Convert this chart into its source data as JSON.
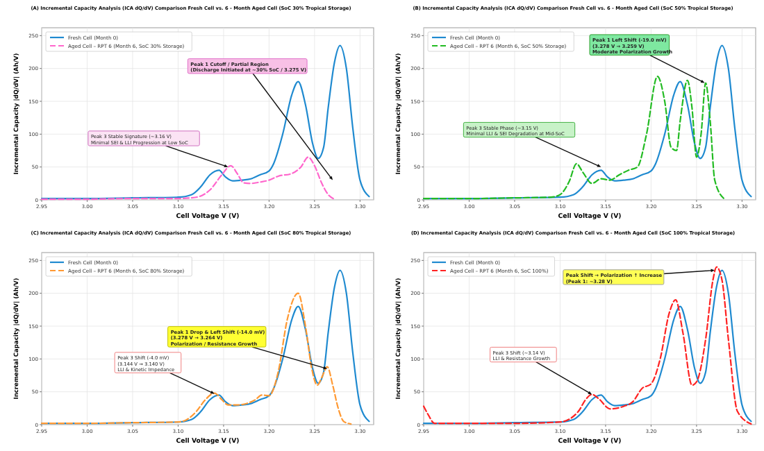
{
  "chart_data": [
    {
      "type": "line",
      "title": "(A)      Incremental Capacity Analysis (ICA dQ/dV) Comparison Fresh Cell vs. 6 - Month Aged Cell (SoC 30% Tropical Storage)",
      "xlabel": "Cell Voltage V (V)",
      "ylabel": "Incremental Capacity |dQ/dV| (Ah/V)",
      "xlim": [
        2.95,
        3.315
      ],
      "ylim": [
        0,
        262
      ],
      "xticks": [
        2.95,
        {
          "value": 3,
          "label": "3.00"
        },
        3.05,
        {
          "value": 3.1,
          "label": "3.10"
        },
        3.15,
        {
          "value": 3.2,
          "label": "3.20"
        },
        3.25,
        {
          "value": 3.3,
          "label": "3.30"
        }
      ],
      "yticks": [
        0,
        50,
        100,
        150,
        200,
        250
      ],
      "grid": true,
      "legend": "top left",
      "marker": "none",
      "series": [
        {
          "name": "Fresh Cell (Month 0)",
          "color": "#1f8ad0",
          "line_style": "solid",
          "x": [
            2.95,
            3.0,
            3.05,
            3.1,
            3.115,
            3.125,
            3.135,
            3.145,
            3.152,
            3.16,
            3.17,
            3.18,
            3.19,
            3.2,
            3.205,
            3.215,
            3.225,
            3.232,
            3.24,
            3.248,
            3.254,
            3.26,
            3.265,
            3.272,
            3.278,
            3.285,
            3.292,
            3.3,
            3.31
          ],
          "values": [
            2,
            2,
            3,
            4,
            8,
            20,
            38,
            45,
            35,
            29,
            30,
            32,
            38,
            44,
            55,
            100,
            160,
            180,
            145,
            85,
            63,
            80,
            140,
            210,
            235,
            200,
            110,
            30,
            5
          ]
        },
        {
          "name": "Aged Cell – RPT 6 (Month 6, SoC 30% Storage)",
          "color": "#ff66cc",
          "line_style": "dashed",
          "x": [
            2.95,
            3.0,
            3.05,
            3.1,
            3.12,
            3.135,
            3.148,
            3.158,
            3.165,
            3.172,
            3.18,
            3.19,
            3.2,
            3.21,
            3.225,
            3.235,
            3.243,
            3.25,
            3.258,
            3.265,
            3.272
          ],
          "values": [
            1,
            1,
            2,
            2,
            4,
            15,
            38,
            52,
            40,
            26,
            25,
            27,
            30,
            36,
            40,
            50,
            65,
            52,
            25,
            8,
            1
          ]
        }
      ],
      "annotations": [
        {
          "text": "Peak 3 Stable Signature (~3.16 V)\nMinimal SEI & LLI Progression at Low SoC",
          "x": 3.155,
          "y": 50
        },
        {
          "text": "Peak 1 Cutoff / Partial Region\n(Discharge Initiated at ~30% SoC / 3.275 V)",
          "x": 3.27,
          "y": 30
        }
      ]
    },
    {
      "type": "line",
      "title": "(B)      Incremental Capacity Analysis (ICA dQ/dV) Comparison Fresh Cell vs. 6 - Month Aged Cell (SoC 50% Tropical Storage)",
      "xlabel": "Cell Voltage V (V)",
      "ylabel": "Incremental Capacity |dQ/dV| (Ah/V)",
      "xlim": [
        2.95,
        3.315
      ],
      "ylim": [
        0,
        262
      ],
      "xticks": [
        2.95,
        {
          "value": 3,
          "label": "3.00"
        },
        3.05,
        {
          "value": 3.1,
          "label": "3.10"
        },
        3.15,
        {
          "value": 3.2,
          "label": "3.20"
        },
        3.25,
        {
          "value": 3.3,
          "label": "3.30"
        }
      ],
      "yticks": [
        0,
        50,
        100,
        150,
        200,
        250
      ],
      "grid": true,
      "legend": "top left",
      "marker": "none",
      "series": [
        {
          "name": "Fresh Cell (Month 0)",
          "color": "#1f8ad0",
          "line_style": "solid",
          "x": [
            2.95,
            3.0,
            3.05,
            3.1,
            3.115,
            3.125,
            3.135,
            3.145,
            3.152,
            3.16,
            3.17,
            3.18,
            3.19,
            3.2,
            3.205,
            3.215,
            3.225,
            3.232,
            3.24,
            3.248,
            3.254,
            3.26,
            3.265,
            3.272,
            3.278,
            3.285,
            3.292,
            3.3,
            3.31
          ],
          "values": [
            2,
            2,
            3,
            4,
            8,
            20,
            38,
            45,
            35,
            29,
            30,
            32,
            38,
            44,
            55,
            100,
            160,
            180,
            145,
            85,
            63,
            80,
            140,
            210,
            235,
            200,
            110,
            30,
            5
          ]
        },
        {
          "name": "Aged Cell – RPT 6 (Month 6, SoC 50% Storage)",
          "color": "#22bb22",
          "line_style": "dashed",
          "x": [
            2.95,
            3.0,
            3.05,
            3.09,
            3.1,
            3.11,
            3.118,
            3.125,
            3.135,
            3.145,
            3.155,
            3.165,
            3.175,
            3.185,
            3.195,
            3.207,
            3.215,
            3.222,
            3.228,
            3.232,
            3.24,
            3.245,
            3.25,
            3.255,
            3.26,
            3.265,
            3.27,
            3.28
          ],
          "values": [
            2,
            2,
            3,
            4,
            8,
            28,
            55,
            42,
            25,
            32,
            30,
            38,
            45,
            50,
            100,
            188,
            150,
            80,
            75,
            120,
            182,
            140,
            65,
            100,
            178,
            120,
            30,
            2
          ]
        }
      ],
      "annotations": [
        {
          "text": "Peak 3 Stable Phase (~3.15 V)\nMinimal LLI & SEI Degradation at Mid-SoC",
          "x": 3.145,
          "y": 50
        },
        {
          "text": "Peak 1 Left Shift (-19.0 mV)\n(3.278 V → 3.259 V)\nModerate Polarization Growth",
          "x": 3.259,
          "y": 178
        }
      ]
    },
    {
      "type": "line",
      "title": "(C)      Incremental Capacity Analysis (ICA dQ/dV) Comparison Fresh Cell vs. 6 - Month Aged Cell (SoC 80% Tropical Storage)",
      "xlabel": "Cell Voltage V (V)",
      "ylabel": "Incremental Capacity |dQ/dV| (Ah/V)",
      "xlim": [
        2.95,
        3.315
      ],
      "ylim": [
        0,
        262
      ],
      "xticks": [
        2.95,
        {
          "value": 3,
          "label": "3.00"
        },
        3.05,
        {
          "value": 3.1,
          "label": "3.10"
        },
        3.15,
        {
          "value": 3.2,
          "label": "3.20"
        },
        3.25,
        {
          "value": 3.3,
          "label": "3.30"
        }
      ],
      "yticks": [
        0,
        50,
        100,
        150,
        200,
        250
      ],
      "grid": true,
      "legend": "top left",
      "marker": "none",
      "series": [
        {
          "name": "Fresh Cell (Month 0)",
          "color": "#1f8ad0",
          "line_style": "solid",
          "x": [
            2.95,
            3.0,
            3.05,
            3.1,
            3.115,
            3.125,
            3.135,
            3.145,
            3.152,
            3.16,
            3.17,
            3.18,
            3.19,
            3.2,
            3.205,
            3.215,
            3.225,
            3.232,
            3.24,
            3.248,
            3.254,
            3.26,
            3.265,
            3.272,
            3.278,
            3.285,
            3.292,
            3.3,
            3.31
          ],
          "values": [
            2,
            2,
            3,
            4,
            8,
            20,
            38,
            45,
            35,
            29,
            30,
            32,
            38,
            44,
            55,
            100,
            160,
            180,
            145,
            85,
            63,
            80,
            140,
            210,
            235,
            200,
            110,
            30,
            5
          ]
        },
        {
          "name": "Aged Cell – RPT 6 (Month 6, SoC 80% Storage)",
          "color": "#ff9933",
          "line_style": "dashed",
          "x": [
            2.95,
            3.0,
            3.05,
            3.1,
            3.11,
            3.12,
            3.13,
            3.14,
            3.148,
            3.155,
            3.165,
            3.175,
            3.185,
            3.192,
            3.2,
            3.21,
            3.22,
            3.232,
            3.24,
            3.247,
            3.253,
            3.258,
            3.264,
            3.27,
            3.276,
            3.282,
            3.29
          ],
          "values": [
            2,
            2,
            3,
            4,
            8,
            20,
            38,
            48,
            38,
            30,
            30,
            32,
            38,
            45,
            44,
            80,
            160,
            200,
            150,
            85,
            60,
            72,
            88,
            60,
            25,
            5,
            1
          ]
        }
      ],
      "annotations": [
        {
          "text": "Peak 3 Shift (-4.0 mV)\n(3.144 V → 3.140 V)\nLLI & Kinetic Impedance",
          "x": 3.14,
          "y": 47
        },
        {
          "text": "Peak 1 Drop & Left Shift (-14.0 mV)\n(3.278 V → 3.264 V)\nPolarization / Resistance Growth",
          "x": 3.264,
          "y": 85
        }
      ]
    },
    {
      "type": "line",
      "title": "(D)      Incremental Capacity Analysis (ICA dQ/dV) Comparison Fresh Cell vs. 6 - Month Aged Cell (SoC 100% Tropical Storage)",
      "xlabel": "Cell Voltage V (V)",
      "ylabel": "Incremental Capacity |dQ/dV| (Ah/V)",
      "xlim": [
        2.95,
        3.315
      ],
      "ylim": [
        0,
        262
      ],
      "xticks": [
        2.95,
        {
          "value": 3,
          "label": "3.00"
        },
        3.05,
        {
          "value": 3.1,
          "label": "3.10"
        },
        3.15,
        {
          "value": 3.2,
          "label": "3.20"
        },
        3.25,
        {
          "value": 3.3,
          "label": "3.30"
        }
      ],
      "yticks": [
        0,
        50,
        100,
        150,
        200,
        250
      ],
      "grid": true,
      "legend": "top left",
      "marker": "none",
      "series": [
        {
          "name": "Fresh Cell (Month 0)",
          "color": "#1f8ad0",
          "line_style": "solid",
          "x": [
            2.95,
            3.0,
            3.05,
            3.1,
            3.115,
            3.125,
            3.135,
            3.145,
            3.152,
            3.16,
            3.17,
            3.18,
            3.19,
            3.2,
            3.205,
            3.215,
            3.225,
            3.232,
            3.24,
            3.248,
            3.254,
            3.26,
            3.265,
            3.272,
            3.278,
            3.285,
            3.292,
            3.3,
            3.31
          ],
          "values": [
            2,
            2,
            3,
            4,
            8,
            20,
            38,
            45,
            35,
            29,
            30,
            32,
            38,
            44,
            55,
            100,
            160,
            180,
            145,
            85,
            63,
            80,
            140,
            210,
            235,
            200,
            110,
            30,
            5
          ]
        },
        {
          "name": "Aged Cell – RPT 6 (Month 6, SoC 100%)",
          "color": "#ff2222",
          "line_style": "dashed",
          "x": [
            2.95,
            2.955,
            2.962,
            3.0,
            3.05,
            3.1,
            3.12,
            3.128,
            3.135,
            3.142,
            3.155,
            3.17,
            3.18,
            3.19,
            3.2,
            3.21,
            3.22,
            3.227,
            3.235,
            3.245,
            3.25,
            3.26,
            3.268,
            3.272,
            3.278,
            3.285,
            3.295,
            3.31
          ],
          "values": [
            28,
            15,
            2,
            2,
            2,
            4,
            20,
            38,
            46,
            40,
            24,
            28,
            35,
            55,
            62,
            100,
            170,
            190,
            140,
            60,
            65,
            130,
            220,
            240,
            220,
            130,
            20,
            1
          ]
        }
      ],
      "annotations": [
        {
          "text": "Peak 3 Shift (~3.14 V)\nLLI & Resistance Growth",
          "x": 3.135,
          "y": 46
        },
        {
          "text": "Peak Shift → Polarization ↑ Increase\n(Peak 1: ~3.28 V)",
          "x": 3.27,
          "y": 235
        }
      ]
    }
  ]
}
